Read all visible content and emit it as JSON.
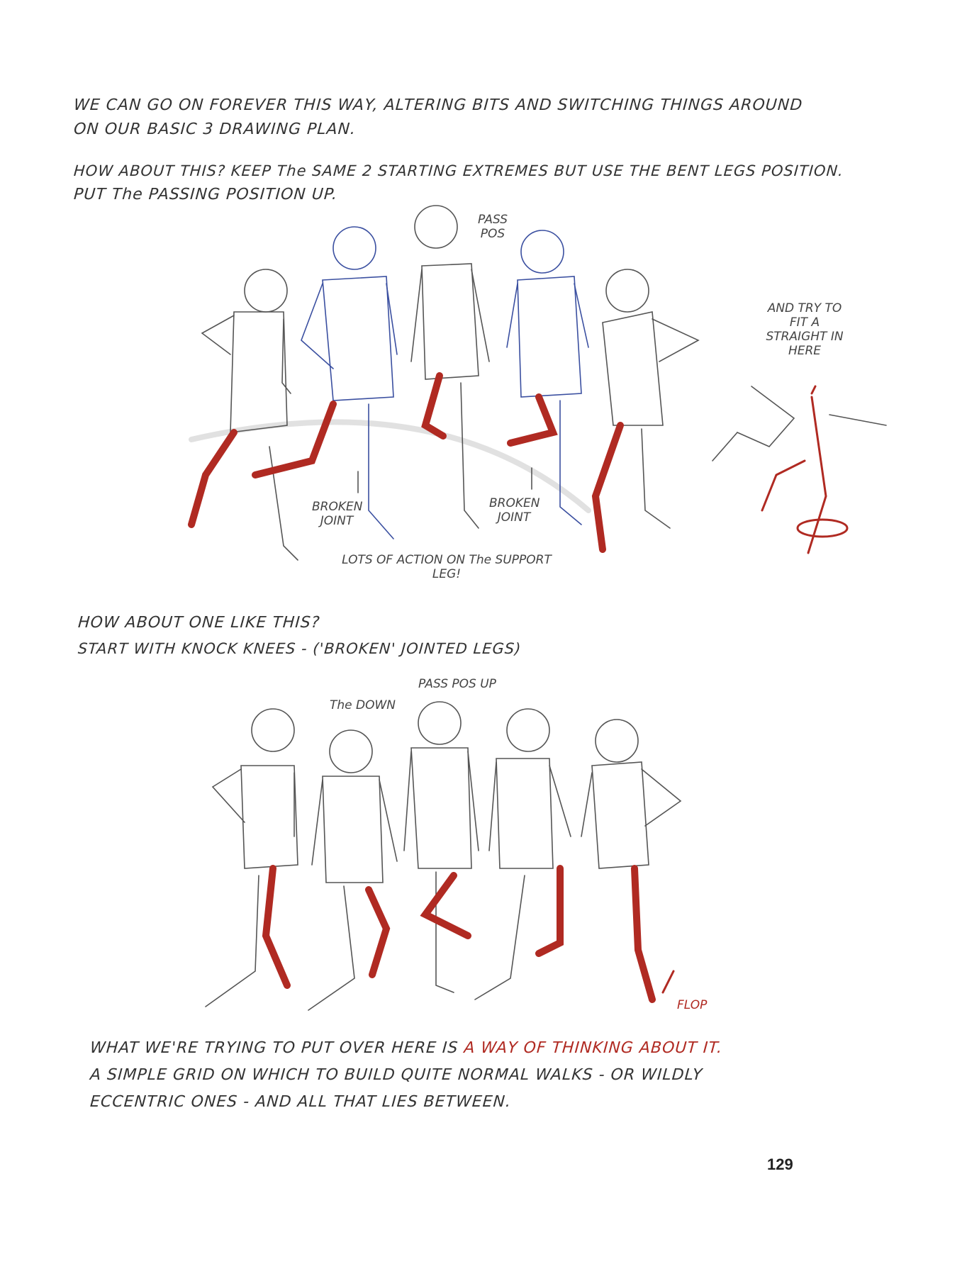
{
  "intro": {
    "line1": "WE CAN GO ON FOREVER THIS WAY, ALTERING BITS AND SWITCHING THINGS AROUND",
    "line2": "ON OUR BASIC 3 DRAWING PLAN.",
    "line3": "HOW ABOUT THIS? KEEP The SAME 2 STARTING EXTREMES BUT USE THE BENT LEGS POSITION.",
    "line4": "PUT The PASSING POSITION UP."
  },
  "figure1": {
    "pass_pos": "PASS POS",
    "and_try": "AND TRY TO FIT A STRAIGHT IN HERE",
    "broken_joint_left": "BROKEN JOINT",
    "broken_joint_right": "BROKEN JOINT",
    "support_leg": "LOTS OF ACTION ON The SUPPORT LEG!"
  },
  "section2": {
    "line1": "HOW ABOUT ONE LIKE THIS?",
    "line2": "START WITH KNOCK KNEES - ('BROKEN' JOINTED LEGS)"
  },
  "figure2": {
    "the_down": "The DOWN",
    "pass_pos_up": "PASS POS UP",
    "flop": "FLOP"
  },
  "closing": {
    "line1_start": "WHAT WE'RE TRYING TO PUT OVER HERE IS ",
    "line1_accent": "A WAY OF THINKING ABOUT IT.",
    "line2": "A SIMPLE GRID ON WHICH TO BUILD QUITE NORMAL WALKS - OR WILDLY",
    "line3": "ECCENTRIC ONES - AND ALL THAT LIES BETWEEN."
  },
  "page_number": "129",
  "colors": {
    "ink": "#333333",
    "red": "#b02a22",
    "blue": "#3a4fa0"
  }
}
